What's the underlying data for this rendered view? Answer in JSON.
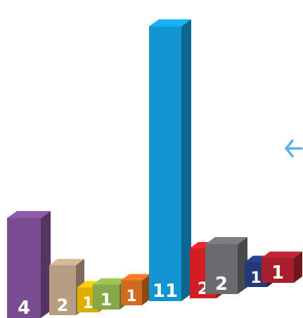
{
  "chart_data": {
    "type": "bar",
    "style": "3d",
    "categories": [
      "",
      "",
      "",
      "",
      "",
      "",
      "",
      "",
      "",
      "",
      ""
    ],
    "values": [
      4,
      2,
      1,
      1,
      1,
      11,
      2,
      2,
      1,
      1,
      0
    ],
    "labels": [
      "4",
      "2",
      "1",
      "1",
      "1",
      "11",
      "2",
      "2",
      "1",
      "1"
    ],
    "colors": [
      "#7a4d92",
      "#b79e82",
      "#ddb000",
      "#86a849",
      "#d06a1e",
      "#1296d2",
      "#d21d24",
      "#6a6b6f",
      "#233a7a",
      "#a81f2b"
    ],
    "title": "",
    "xlabel": "",
    "ylabel": "",
    "ylim": [
      0,
      12
    ],
    "grid": false,
    "legend": "none"
  },
  "icons": {
    "nav_arrow": "arrow-left-icon",
    "nav_arrow_color": "#5ab4e3"
  }
}
